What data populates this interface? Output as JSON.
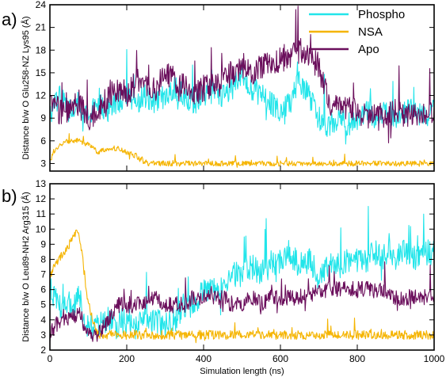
{
  "chart_data": [
    {
      "type": "line",
      "panel_label": "a)",
      "xlabel": "",
      "ylabel": "Distance b/w O Glu258-NZ Lys95 (Å)",
      "xlim": [
        0,
        1000
      ],
      "ylim": [
        2,
        24
      ],
      "yticks": [
        3,
        6,
        9,
        12,
        15,
        18,
        21,
        24
      ],
      "xticks": [
        0,
        200,
        400,
        600,
        800,
        1000
      ],
      "legend_position": "top-right",
      "series": [
        {
          "name": "Phospho",
          "color": "#22e5ea",
          "x": [
            0,
            25,
            50,
            75,
            100,
            125,
            150,
            175,
            200,
            225,
            250,
            275,
            300,
            325,
            350,
            375,
            400,
            425,
            450,
            475,
            500,
            525,
            550,
            575,
            600,
            625,
            650,
            675,
            700,
            725,
            750,
            775,
            800,
            825,
            850,
            875,
            900,
            925,
            950,
            975,
            1000
          ],
          "y": [
            9,
            12,
            10,
            11,
            9,
            11,
            10,
            11,
            12,
            11,
            12,
            11,
            12,
            13,
            12,
            11,
            12,
            13,
            12,
            13,
            15,
            13,
            12,
            11,
            10,
            11,
            14,
            12,
            9,
            8,
            9,
            8,
            9,
            10,
            9,
            10,
            9,
            10,
            10,
            9,
            10
          ]
        },
        {
          "name": "NSA",
          "color": "#f5b400",
          "x": [
            0,
            25,
            50,
            75,
            100,
            125,
            150,
            175,
            200,
            225,
            250,
            275,
            300,
            325,
            350,
            375,
            400,
            425,
            450,
            475,
            500,
            525,
            550,
            575,
            600,
            625,
            650,
            675,
            700,
            725,
            750,
            775,
            800,
            825,
            850,
            875,
            900,
            925,
            950,
            975,
            1000
          ],
          "y": [
            3.5,
            5.5,
            6,
            6,
            5.5,
            4.5,
            5,
            5,
            4.5,
            4,
            3,
            3,
            3,
            3,
            3,
            3,
            3,
            3,
            3,
            3,
            3,
            3,
            3,
            3,
            3,
            3,
            3,
            3,
            3,
            3,
            3,
            3,
            3,
            3,
            3,
            3,
            3,
            3,
            3,
            3,
            3
          ]
        },
        {
          "name": "Apo",
          "color": "#6b0f5c",
          "x": [
            0,
            25,
            50,
            75,
            100,
            125,
            150,
            175,
            200,
            225,
            250,
            275,
            300,
            325,
            350,
            375,
            400,
            425,
            450,
            475,
            500,
            525,
            550,
            575,
            600,
            625,
            650,
            675,
            700,
            725,
            750,
            775,
            800,
            825,
            850,
            875,
            900,
            925,
            950,
            975,
            1000
          ],
          "y": [
            11,
            10,
            10,
            11,
            9,
            10,
            12,
            13,
            12,
            14,
            13,
            13,
            15,
            14,
            13,
            12,
            13,
            13,
            14,
            15,
            16,
            15,
            16,
            16,
            17,
            17,
            18,
            17,
            16,
            11,
            10,
            10,
            10,
            9,
            10,
            9,
            10,
            9,
            10,
            9,
            10
          ]
        }
      ]
    },
    {
      "type": "line",
      "panel_label": "b)",
      "xlabel": "Simulation length (ns)",
      "ylabel": "Distance b/w O Leu89-NH2 Arg315 (Å)",
      "xlim": [
        0,
        1000
      ],
      "ylim": [
        2,
        13
      ],
      "yticks": [
        2,
        3,
        4,
        5,
        6,
        7,
        8,
        9,
        10,
        11,
        12,
        13
      ],
      "xticks": [
        0,
        200,
        400,
        600,
        800,
        1000
      ],
      "series": [
        {
          "name": "Phospho",
          "color": "#22e5ea",
          "x": [
            0,
            25,
            50,
            75,
            100,
            125,
            150,
            175,
            200,
            225,
            250,
            275,
            300,
            325,
            350,
            375,
            400,
            425,
            450,
            475,
            500,
            525,
            550,
            575,
            600,
            625,
            650,
            675,
            700,
            725,
            750,
            775,
            800,
            825,
            850,
            875,
            900,
            925,
            950,
            975,
            1000
          ],
          "y": [
            6,
            5,
            5,
            5.5,
            3.5,
            3.5,
            4,
            3.5,
            4,
            3.5,
            4,
            4,
            3.5,
            4,
            5,
            5,
            6,
            6,
            6.5,
            7,
            7,
            7.5,
            7,
            7.5,
            8,
            8.5,
            7.5,
            8,
            7,
            7.5,
            7.5,
            8,
            8,
            8,
            8.5,
            8,
            8,
            8.5,
            8,
            8.5,
            8.5
          ]
        },
        {
          "name": "NSA",
          "color": "#f5b400",
          "x": [
            0,
            25,
            50,
            75,
            100,
            125,
            150,
            175,
            200,
            225,
            250,
            275,
            300,
            325,
            350,
            375,
            400,
            425,
            450,
            475,
            500,
            525,
            550,
            575,
            600,
            625,
            650,
            675,
            700,
            725,
            750,
            775,
            800,
            825,
            850,
            875,
            900,
            925,
            950,
            975,
            1000
          ],
          "y": [
            7,
            8,
            9,
            10,
            5,
            3,
            3,
            3,
            3,
            3,
            3,
            3,
            3,
            3,
            3,
            3,
            3,
            3,
            3,
            3,
            3,
            3,
            3,
            3,
            3,
            3,
            3,
            3,
            3,
            3,
            3,
            3,
            3,
            3,
            3,
            3,
            3,
            3,
            3,
            3,
            3
          ]
        },
        {
          "name": "Apo",
          "color": "#6b0f5c",
          "x": [
            0,
            25,
            50,
            75,
            100,
            125,
            150,
            175,
            200,
            225,
            250,
            275,
            300,
            325,
            350,
            375,
            400,
            425,
            450,
            475,
            500,
            525,
            550,
            575,
            600,
            625,
            650,
            675,
            700,
            725,
            750,
            775,
            800,
            825,
            850,
            875,
            900,
            925,
            950,
            975,
            1000
          ],
          "y": [
            3,
            4,
            4,
            4.5,
            3,
            3,
            4,
            5,
            5,
            5,
            5,
            5.5,
            5,
            5,
            5,
            5.5,
            5.5,
            5.5,
            5.5,
            5,
            5,
            5.5,
            5,
            5.5,
            5.5,
            5.5,
            5.5,
            5.5,
            6,
            6,
            6,
            6,
            6,
            6,
            6,
            6,
            5.5,
            5.5,
            5.5,
            5.5,
            5.5
          ]
        }
      ]
    }
  ]
}
